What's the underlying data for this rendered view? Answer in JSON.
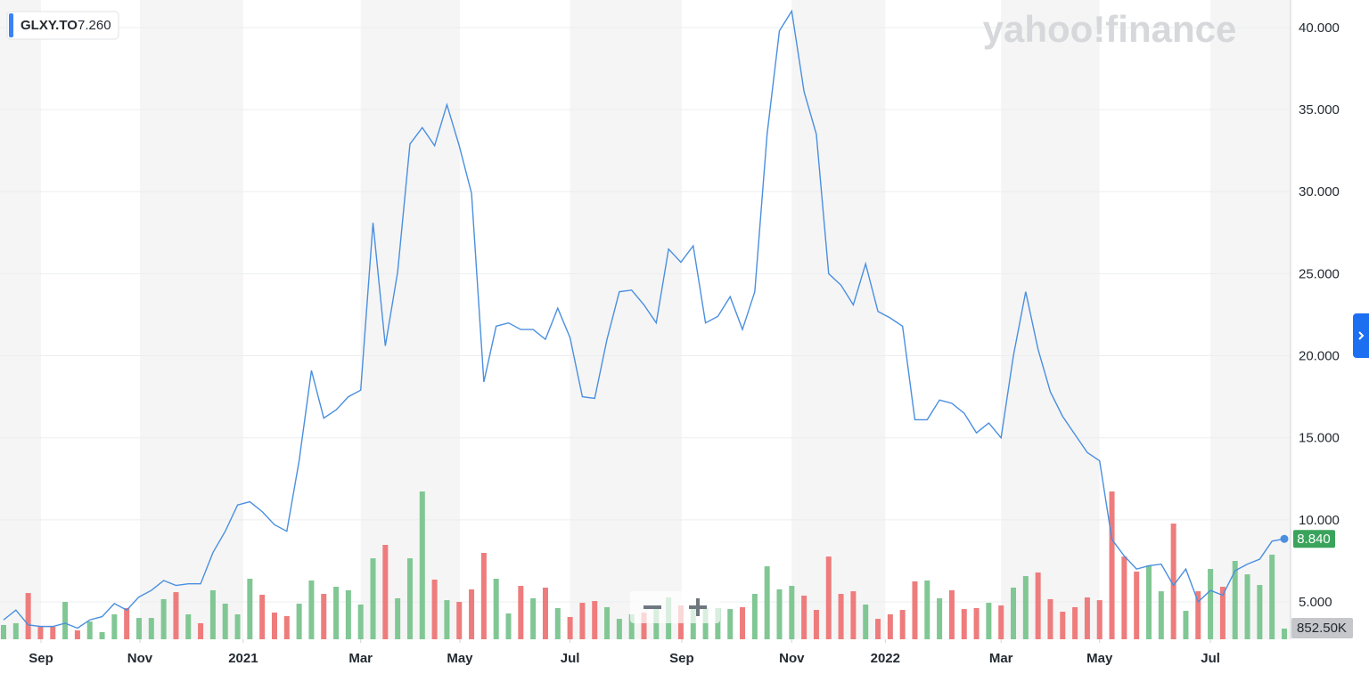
{
  "chart_data": {
    "type": "line",
    "symbol": "GLXY.TO",
    "quote": {
      "value": 7.26,
      "label": "7.260"
    },
    "watermark": "yahoo!finance",
    "ylim": [
      2.72,
      41.68
    ],
    "yticks": [
      {
        "value": 5,
        "label": "5.000"
      },
      {
        "value": 10,
        "label": "10.000"
      },
      {
        "value": 15,
        "label": "15.000"
      },
      {
        "value": 20,
        "label": "20.000"
      },
      {
        "value": 25,
        "label": "25.000"
      },
      {
        "value": 30,
        "label": "30.000"
      },
      {
        "value": 35,
        "label": "35.000"
      },
      {
        "value": 40,
        "label": "40.000"
      }
    ],
    "xticks": [
      {
        "value": 3.04,
        "label": "Sep"
      },
      {
        "value": 11.07,
        "label": "Nov"
      },
      {
        "value": 19.46,
        "label": "2021"
      },
      {
        "value": 29.0,
        "label": "Mar"
      },
      {
        "value": 37.05,
        "label": "May"
      },
      {
        "value": 46.0,
        "label": "Jul"
      },
      {
        "value": 55.07,
        "label": "Sep"
      },
      {
        "value": 64.0,
        "label": "Nov"
      },
      {
        "value": 71.6,
        "label": "2022"
      },
      {
        "value": 81.0,
        "label": "Mar"
      },
      {
        "value": 89.0,
        "label": "May"
      },
      {
        "value": 98.0,
        "label": "Jul"
      }
    ],
    "grid": true,
    "y2lim": [
      0,
      51000
    ],
    "series": [
      {
        "name": "GLXY.TO",
        "color": "#4a8fdf",
        "last_label": "8.840",
        "last_label_color": "#3aa35c",
        "values": [
          3.9,
          4.5,
          3.6,
          3.5,
          3.5,
          3.7,
          3.4,
          3.9,
          4.1,
          4.9,
          4.5,
          5.3,
          5.7,
          6.3,
          6.0,
          6.1,
          6.1,
          8.0,
          9.3,
          10.9,
          11.1,
          10.5,
          9.7,
          9.3,
          13.6,
          19.1,
          16.2,
          16.7,
          17.5,
          17.9,
          28.1,
          20.6,
          25.1,
          32.9,
          33.9,
          32.8,
          35.3,
          32.8,
          29.9,
          18.4,
          21.8,
          22.0,
          21.6,
          21.6,
          21.0,
          22.9,
          21.1,
          17.5,
          17.4,
          21.0,
          23.9,
          24.0,
          23.1,
          22.0,
          26.5,
          25.7,
          26.7,
          22.0,
          22.4,
          23.6,
          21.6,
          23.9,
          33.5,
          39.8,
          41.0,
          36.1,
          33.5,
          25.0,
          24.3,
          23.1,
          25.6,
          22.7,
          22.3,
          21.8,
          16.1,
          16.1,
          17.3,
          17.1,
          16.5,
          15.3,
          15.9,
          15.0,
          20.0,
          23.9,
          20.4,
          17.8,
          16.3,
          15.2,
          14.1,
          13.6,
          8.8,
          7.8,
          7.0,
          7.2,
          7.3,
          6.0,
          7.0,
          5.0,
          5.7,
          5.4,
          6.9,
          7.3,
          7.6,
          8.7,
          8.84
        ]
      },
      {
        "type": "bar",
        "axis": "y2",
        "last_label": "852.50K",
        "last_label_color": "#c5c7ca",
        "values": [
          1140,
          1280,
          3690,
          990,
          990,
          2980,
          710,
          1420,
          570,
          1990,
          2490,
          1700,
          1700,
          3200,
          3760,
          1990,
          1280,
          3910,
          2840,
          1990,
          4830,
          3550,
          2130,
          1850,
          2840,
          4690,
          3620,
          4190,
          3910,
          2770,
          6460,
          7530,
          3270,
          6460,
          11790,
          4760,
          3120,
          2980,
          3980,
          6890,
          4830,
          2060,
          4260,
          3270,
          4120,
          2490,
          1780,
          2910,
          3050,
          2560,
          1630,
          1990,
          2130,
          2630,
          3340,
          2700,
          2560,
          2490,
          2490,
          2410,
          2560,
          3620,
          5820,
          3980,
          4260,
          3480,
          2340,
          6600,
          3620,
          3830,
          2770,
          1630,
          1990,
          2340,
          4620,
          4690,
          3270,
          3910,
          2410,
          2490,
          2910,
          2700,
          4120,
          5040,
          5330,
          3200,
          2200,
          2560,
          3340,
          3120,
          11790,
          6600,
          5400,
          5890,
          3830,
          9230,
          2270,
          3830,
          5610,
          4190,
          6250,
          5180,
          4330,
          6750,
          852.5
        ],
        "colors": [
          "#80c794",
          "#80c794",
          "#ee7c7c",
          "#ee7c7c",
          "#ee7c7c",
          "#80c794",
          "#ee7c7c",
          "#80c794",
          "#80c794",
          "#80c794",
          "#ee7c7c",
          "#80c794",
          "#80c794",
          "#80c794",
          "#ee7c7c",
          "#80c794",
          "#ee7c7c",
          "#80c794",
          "#80c794",
          "#80c794",
          "#80c794",
          "#ee7c7c",
          "#ee7c7c",
          "#ee7c7c",
          "#80c794",
          "#80c794",
          "#ee7c7c",
          "#80c794",
          "#80c794",
          "#80c794",
          "#80c794",
          "#ee7c7c",
          "#80c794",
          "#80c794",
          "#80c794",
          "#ee7c7c",
          "#80c794",
          "#ee7c7c",
          "#ee7c7c",
          "#ee7c7c",
          "#80c794",
          "#80c794",
          "#ee7c7c",
          "#80c794",
          "#ee7c7c",
          "#80c794",
          "#ee7c7c",
          "#ee7c7c",
          "#ee7c7c",
          "#80c794",
          "#80c794",
          "#80c794",
          "#ee7c7c",
          "#80c794",
          "#80c794",
          "#ee7c7c",
          "#80c794",
          "#80c794",
          "#80c794",
          "#80c794",
          "#ee7c7c",
          "#80c794",
          "#80c794",
          "#80c794",
          "#80c794",
          "#ee7c7c",
          "#ee7c7c",
          "#ee7c7c",
          "#ee7c7c",
          "#ee7c7c",
          "#80c794",
          "#ee7c7c",
          "#ee7c7c",
          "#ee7c7c",
          "#ee7c7c",
          "#80c794",
          "#80c794",
          "#ee7c7c",
          "#ee7c7c",
          "#ee7c7c",
          "#80c794",
          "#ee7c7c",
          "#80c794",
          "#80c794",
          "#ee7c7c",
          "#ee7c7c",
          "#ee7c7c",
          "#ee7c7c",
          "#ee7c7c",
          "#ee7c7c",
          "#ee7c7c",
          "#ee7c7c",
          "#ee7c7c",
          "#80c794",
          "#80c794",
          "#ee7c7c",
          "#80c794",
          "#ee7c7c",
          "#80c794",
          "#ee7c7c",
          "#80c794",
          "#80c794",
          "#80c794",
          "#80c794",
          "#80c794"
        ]
      }
    ]
  }
}
